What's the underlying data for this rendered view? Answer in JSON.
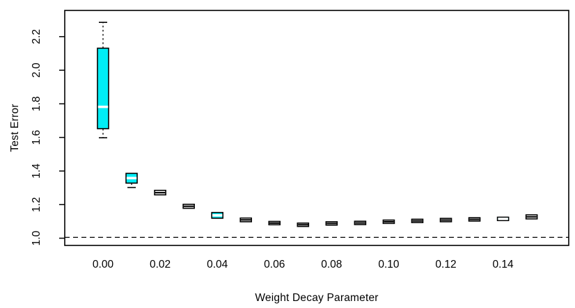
{
  "figure": {
    "background": "#ffffff",
    "frame_color": "#000000"
  },
  "chart_data": {
    "type": "boxplot",
    "title": "",
    "xlabel": "Weight Decay Parameter",
    "ylabel": "Test Error",
    "xlim": [
      -0.0134,
      0.163
    ],
    "ylim": [
      0.957,
      2.356
    ],
    "grid": "off",
    "legend": "none",
    "x_ticks": [
      {
        "value": 0.0,
        "label": "0.00"
      },
      {
        "value": 0.02,
        "label": "0.02"
      },
      {
        "value": 0.04,
        "label": "0.04"
      },
      {
        "value": 0.06,
        "label": "0.06"
      },
      {
        "value": 0.08,
        "label": "0.08"
      },
      {
        "value": 0.1,
        "label": "0.10"
      },
      {
        "value": 0.12,
        "label": "0.12"
      },
      {
        "value": 0.14,
        "label": "0.14"
      }
    ],
    "y_ticks": [
      {
        "value": 1.0,
        "label": "1.0"
      },
      {
        "value": 1.2,
        "label": "1.2"
      },
      {
        "value": 1.4,
        "label": "1.4"
      },
      {
        "value": 1.6,
        "label": "1.6"
      },
      {
        "value": 1.8,
        "label": "1.8"
      },
      {
        "value": 2.0,
        "label": "2.0"
      },
      {
        "value": 2.2,
        "label": "2.2"
      }
    ],
    "reference_line": {
      "y": 1.005,
      "style": "dashed",
      "color": "#000000"
    },
    "colors": {
      "box_fill_highlight": "#00EDF5",
      "box_fill_plain": "#FFFFFF",
      "box_border": "#000000",
      "median_on_highlight": "#FFFFFF",
      "median_on_plain": "#000000"
    },
    "boxes": [
      {
        "x": 0.0,
        "whisker_low": 1.598,
        "q1": 1.652,
        "median": 1.782,
        "q3": 2.131,
        "whisker_high": 2.285,
        "fill": "highlight"
      },
      {
        "x": 0.01,
        "whisker_low": 1.302,
        "q1": 1.328,
        "median": 1.358,
        "q3": 1.386,
        "whisker_high": 1.39,
        "fill": "highlight"
      },
      {
        "x": 0.02,
        "whisker_low": 1.258,
        "q1": 1.258,
        "median": 1.271,
        "q3": 1.285,
        "whisker_high": 1.285,
        "fill": "plain"
      },
      {
        "x": 0.03,
        "whisker_low": 1.178,
        "q1": 1.178,
        "median": 1.19,
        "q3": 1.202,
        "whisker_high": 1.202,
        "fill": "plain"
      },
      {
        "x": 0.04,
        "whisker_low": 1.119,
        "q1": 1.119,
        "median": 1.136,
        "q3": 1.153,
        "whisker_high": 1.153,
        "fill": "highlight"
      },
      {
        "x": 0.05,
        "whisker_low": 1.098,
        "q1": 1.098,
        "median": 1.109,
        "q3": 1.12,
        "whisker_high": 1.12,
        "fill": "plain"
      },
      {
        "x": 0.06,
        "whisker_low": 1.08,
        "q1": 1.08,
        "median": 1.09,
        "q3": 1.1,
        "whisker_high": 1.1,
        "fill": "plain"
      },
      {
        "x": 0.07,
        "whisker_low": 1.07,
        "q1": 1.07,
        "median": 1.08,
        "q3": 1.09,
        "whisker_high": 1.09,
        "fill": "plain"
      },
      {
        "x": 0.08,
        "whisker_low": 1.078,
        "q1": 1.078,
        "median": 1.088,
        "q3": 1.098,
        "whisker_high": 1.098,
        "fill": "plain"
      },
      {
        "x": 0.09,
        "whisker_low": 1.081,
        "q1": 1.081,
        "median": 1.091,
        "q3": 1.101,
        "whisker_high": 1.101,
        "fill": "plain"
      },
      {
        "x": 0.1,
        "whisker_low": 1.088,
        "q1": 1.088,
        "median": 1.098,
        "q3": 1.108,
        "whisker_high": 1.108,
        "fill": "plain"
      },
      {
        "x": 0.11,
        "whisker_low": 1.093,
        "q1": 1.093,
        "median": 1.103,
        "q3": 1.113,
        "whisker_high": 1.113,
        "fill": "plain"
      },
      {
        "x": 0.12,
        "whisker_low": 1.098,
        "q1": 1.098,
        "median": 1.108,
        "q3": 1.118,
        "whisker_high": 1.118,
        "fill": "plain"
      },
      {
        "x": 0.13,
        "whisker_low": 1.102,
        "q1": 1.102,
        "median": 1.112,
        "q3": 1.122,
        "whisker_high": 1.122,
        "fill": "plain"
      },
      {
        "x": 0.14,
        "whisker_low": 1.105,
        "q1": 1.105,
        "median": 1.115,
        "q3": 1.125,
        "whisker_high": 1.125,
        "fill": "highlight"
      },
      {
        "x": 0.15,
        "whisker_low": 1.115,
        "q1": 1.115,
        "median": 1.127,
        "q3": 1.139,
        "whisker_high": 1.139,
        "fill": "plain"
      }
    ]
  }
}
